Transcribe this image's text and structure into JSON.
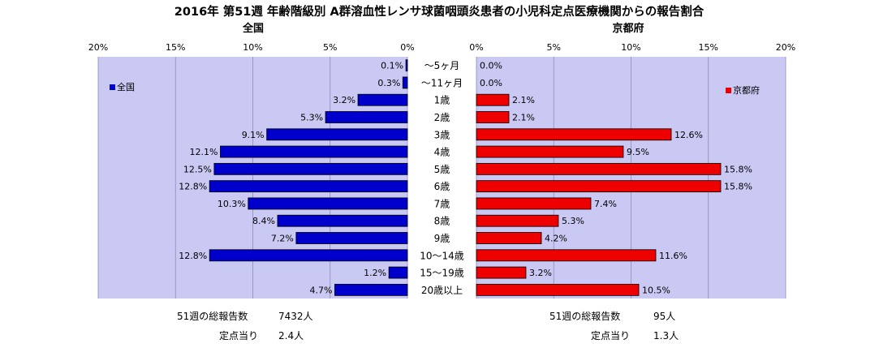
{
  "title": "2016年 第51週 年齢階級別 A群溶血性レンサ球菌咽頭炎患者の小児科定点医療機関からの報告割合",
  "chart_data": [
    {
      "type": "bar",
      "orientation": "horizontal",
      "subtitle": "全国",
      "legend_label": "全国",
      "legend_position": "top-left",
      "color": "#0000cc",
      "x_axis": {
        "min": 20,
        "max": 0,
        "ticks": [
          "20%",
          "15%",
          "10%",
          "5%",
          "0%"
        ]
      },
      "values": [
        0.1,
        0.3,
        3.2,
        5.3,
        9.1,
        12.1,
        12.5,
        12.8,
        10.3,
        8.4,
        7.2,
        12.8,
        1.2,
        4.7
      ],
      "value_labels": [
        "0.1%",
        "0.3%",
        "3.2%",
        "5.3%",
        "9.1%",
        "12.1%",
        "12.5%",
        "12.8%",
        "10.3%",
        "8.4%",
        "7.2%",
        "12.8%",
        "1.2%",
        "4.7%"
      ]
    },
    {
      "type": "bar",
      "orientation": "horizontal",
      "subtitle": "京都府",
      "legend_label": "京都府",
      "legend_position": "top-right",
      "color": "#ee0000",
      "x_axis": {
        "min": 0,
        "max": 20,
        "ticks": [
          "0%",
          "5%",
          "10%",
          "15%",
          "20%"
        ]
      },
      "values": [
        0.0,
        0.0,
        2.1,
        2.1,
        12.6,
        9.5,
        15.8,
        15.8,
        7.4,
        5.3,
        4.2,
        11.6,
        3.2,
        10.5
      ],
      "value_labels": [
        "0.0%",
        "0.0%",
        "2.1%",
        "2.1%",
        "12.6%",
        "9.5%",
        "15.8%",
        "15.8%",
        "7.4%",
        "5.3%",
        "4.2%",
        "11.6%",
        "3.2%",
        "10.5%"
      ]
    }
  ],
  "categories": [
    "～5ヶ月",
    "～11ヶ月",
    "1歳",
    "2歳",
    "3歳",
    "4歳",
    "5歳",
    "6歳",
    "7歳",
    "8歳",
    "9歳",
    "10～14歳",
    "15～19歳",
    "20歳以上"
  ],
  "footer": {
    "left": {
      "total_label": "51週の総報告数",
      "total_value": "7432人",
      "per_label": "定点当り",
      "per_value": "2.4人"
    },
    "right": {
      "total_label": "51週の総報告数",
      "total_value": "95人",
      "per_label": "定点当り",
      "per_value": "1.3人"
    }
  }
}
